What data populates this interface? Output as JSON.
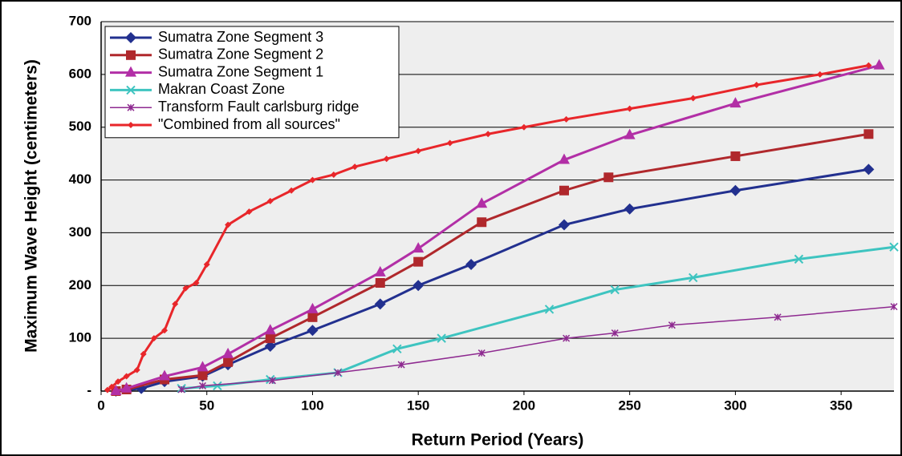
{
  "chart_data": {
    "type": "line",
    "xlabel": "Return Period (Years)",
    "ylabel": "Maximum Wave Height (centimeters)",
    "xlim": [
      0,
      375
    ],
    "xticks": [
      0,
      50,
      100,
      150,
      200,
      250,
      300,
      350
    ],
    "ylim": [
      0,
      700
    ],
    "yticks": [
      {
        "value": 0,
        "label": "-"
      },
      100,
      200,
      300,
      400,
      500,
      600,
      700
    ],
    "grid": true,
    "legend": "upper left",
    "series": [
      {
        "name": "Sumatra Zone Segment 3",
        "color": "#22308f",
        "marker": "diamond",
        "x": [
          7,
          19,
          30,
          48,
          60,
          80,
          100,
          132,
          150,
          175,
          219,
          250,
          300,
          363
        ],
        "values": [
          0,
          5,
          18,
          28,
          50,
          85,
          115,
          165,
          200,
          240,
          315,
          345,
          380,
          420
        ]
      },
      {
        "name": "Sumatra Zone Segment 2",
        "color": "#b0282c",
        "marker": "square",
        "x": [
          7,
          12,
          30,
          48,
          60,
          80,
          100,
          132,
          150,
          180,
          219,
          240,
          300,
          363
        ],
        "values": [
          0,
          3,
          22,
          30,
          55,
          100,
          140,
          205,
          245,
          320,
          380,
          405,
          445,
          487
        ]
      },
      {
        "name": "Sumatra Zone Segment 1",
        "color": "#b22fa6",
        "marker": "triangle",
        "x": [
          7,
          12,
          30,
          48,
          60,
          80,
          100,
          132,
          150,
          180,
          219,
          250,
          300,
          368
        ],
        "values": [
          0,
          5,
          28,
          45,
          70,
          115,
          155,
          225,
          270,
          355,
          438,
          485,
          545,
          617
        ]
      },
      {
        "name": "Makran Coast Zone",
        "color": "#3ec4c0",
        "marker": "x",
        "x": [
          38,
          55,
          80,
          112,
          140,
          161,
          212,
          243,
          280,
          330,
          375
        ],
        "values": [
          5,
          10,
          22,
          35,
          80,
          100,
          155,
          192,
          215,
          250,
          273
        ]
      },
      {
        "name": "Transform Fault carlsburg ridge",
        "color": "#8e2a90",
        "marker": "star",
        "x": [
          38,
          48,
          81,
          112,
          142,
          180,
          220,
          243,
          270,
          320,
          375
        ],
        "values": [
          3,
          10,
          20,
          35,
          50,
          72,
          100,
          110,
          125,
          140,
          160
        ]
      },
      {
        "name": "\"Combined from all sources\"",
        "color": "#e8262a",
        "marker": "smalldiamond",
        "x": [
          3,
          5,
          8,
          12,
          17,
          20,
          25,
          30,
          35,
          40,
          45,
          50,
          60,
          70,
          80,
          90,
          100,
          110,
          120,
          135,
          150,
          165,
          183,
          200,
          220,
          250,
          280,
          310,
          340,
          363
        ],
        "values": [
          2,
          8,
          18,
          28,
          40,
          70,
          100,
          115,
          165,
          195,
          205,
          240,
          315,
          340,
          360,
          380,
          400,
          410,
          425,
          440,
          455,
          470,
          487,
          500,
          515,
          535,
          555,
          580,
          600,
          617
        ]
      }
    ]
  }
}
